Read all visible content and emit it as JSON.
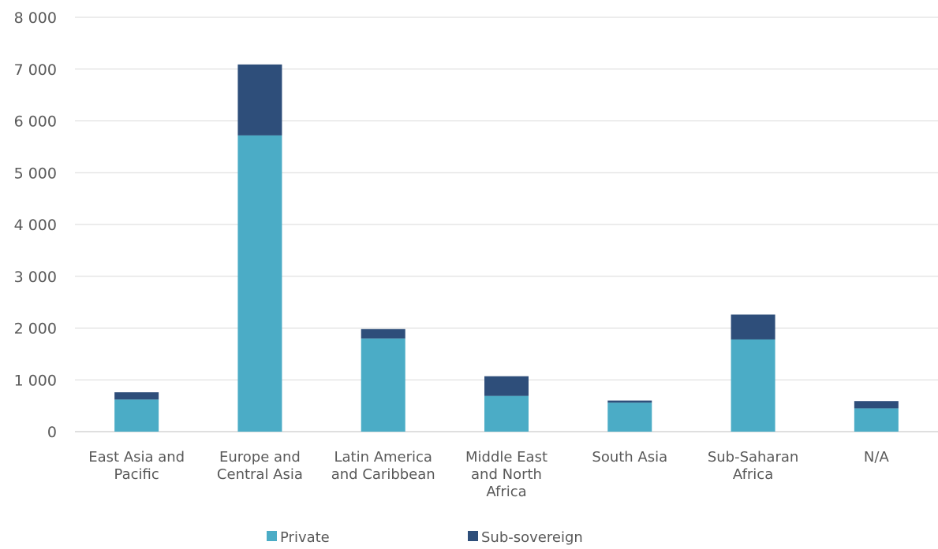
{
  "chart_data": {
    "type": "bar",
    "stacked": true,
    "title": "",
    "xlabel": "",
    "ylabel": "",
    "ylim": [
      0,
      8000
    ],
    "y_ticks": [
      0,
      1000,
      2000,
      3000,
      4000,
      5000,
      6000,
      7000,
      8000
    ],
    "y_tick_labels": [
      "0",
      "1 000",
      "2 000",
      "3 000",
      "4 000",
      "5 000",
      "6 000",
      "7 000",
      "8 000"
    ],
    "grid": true,
    "legend_position": "bottom",
    "categories": [
      [
        "East Asia and",
        "Pacific"
      ],
      [
        "Europe and",
        "Central Asia"
      ],
      [
        "Latin America",
        "and Caribbean"
      ],
      [
        "Middle East",
        "and North",
        "Africa"
      ],
      [
        "South Asia"
      ],
      [
        "Sub-Saharan",
        "Africa"
      ],
      [
        "N/A"
      ]
    ],
    "series": [
      {
        "name": "Private",
        "color": "#4bacc6",
        "values": [
          620,
          5720,
          1800,
          690,
          560,
          1780,
          450
        ]
      },
      {
        "name": "Sub-sovereign",
        "color": "#2e4e7a",
        "values": [
          140,
          1370,
          180,
          380,
          40,
          480,
          140
        ]
      }
    ]
  }
}
